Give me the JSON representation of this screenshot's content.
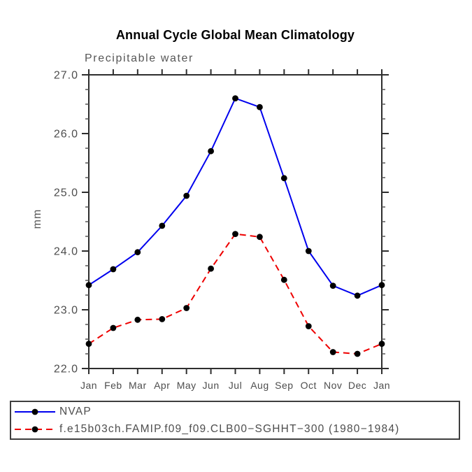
{
  "page": {
    "background": "#ffffff"
  },
  "chart_data": {
    "type": "line",
    "title": "Annual Cycle Global Mean Climatology",
    "subtitle": "Precipitable water",
    "ylabel": "mm",
    "xlabel": "",
    "categories": [
      "Jan",
      "Feb",
      "Mar",
      "Apr",
      "May",
      "Jun",
      "Jul",
      "Aug",
      "Sep",
      "Oct",
      "Nov",
      "Dec",
      "Jan"
    ],
    "ylim": [
      22.0,
      27.0
    ],
    "ytick_interval": 1.0,
    "ytick_minor_interval": 0.25,
    "grid": false,
    "legend_position": "bottom",
    "axis_color": "#2e2e2e",
    "minor_tick_color": "#555555",
    "text_color": "#4d4d4d",
    "series": [
      {
        "name": "NVAP",
        "color": "#0000ee",
        "line_style": "solid",
        "marker": "circle",
        "marker_color": "#000000",
        "values": [
          23.42,
          23.69,
          23.98,
          24.43,
          24.94,
          25.7,
          26.6,
          26.45,
          25.24,
          24.0,
          23.41,
          23.24,
          23.42
        ]
      },
      {
        "name": "f.e15b03ch.FAMIP.f09_f09.CLB00−SGHHT−300 (1980−1984)",
        "color": "#ee0000",
        "line_style": "dashed",
        "marker": "circle",
        "marker_color": "#000000",
        "values": [
          22.42,
          22.69,
          22.83,
          22.84,
          23.03,
          23.7,
          24.29,
          24.24,
          23.51,
          22.72,
          22.28,
          22.25,
          22.42
        ]
      }
    ]
  }
}
